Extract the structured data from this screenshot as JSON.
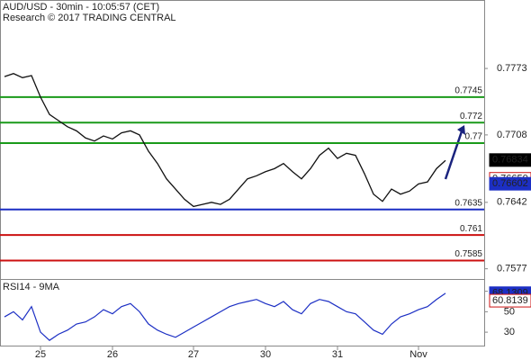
{
  "chart_data": {
    "type": "line",
    "title": "AUD/USD - 30min - 10:05:57 (CET)",
    "subtitle": "Research © 2017 TRADING CENTRAL",
    "categories": [
      null,
      null,
      null,
      null,
      "25",
      null,
      null,
      null,
      null,
      null,
      null,
      null,
      "26",
      null,
      null,
      null,
      null,
      null,
      null,
      null,
      null,
      "27",
      null,
      null,
      null,
      null,
      null,
      null,
      null,
      "30",
      null,
      null,
      null,
      null,
      null,
      null,
      null,
      "31",
      null,
      null,
      null,
      null,
      null,
      null,
      null,
      null,
      "Nov",
      null,
      null,
      null
    ],
    "series": [
      {
        "name": "AUD/USD",
        "color": "#111111",
        "values": [
          0.7765,
          0.7768,
          0.7764,
          0.7766,
          0.7745,
          0.7728,
          0.7722,
          0.7716,
          0.7712,
          0.7705,
          0.7702,
          0.7707,
          0.7704,
          0.771,
          0.7712,
          0.7708,
          0.7692,
          0.768,
          0.7665,
          0.7655,
          0.7645,
          0.7638,
          0.764,
          0.7642,
          0.764,
          0.7645,
          0.7655,
          0.7665,
          0.7668,
          0.7672,
          0.7675,
          0.768,
          0.7672,
          0.7665,
          0.7675,
          0.7688,
          0.7695,
          0.7685,
          0.769,
          0.7688,
          0.767,
          0.765,
          0.7643,
          0.7655,
          0.765,
          0.7653,
          0.766,
          0.7662,
          0.7675,
          0.7683
        ]
      }
    ],
    "ylim": [
      0.7567,
      0.784
    ],
    "yticks": [
      0.7773,
      0.7708,
      0.7642,
      0.7577
    ],
    "levels": [
      {
        "value": 0.7745,
        "color": "#1a9a1a"
      },
      {
        "value": 0.772,
        "color": "#1a9a1a"
      },
      {
        "value": 0.77,
        "color": "#1a9a1a"
      },
      {
        "value": 0.7635,
        "color": "#1c2fc4"
      },
      {
        "value": 0.761,
        "color": "#cc1111"
      },
      {
        "value": 0.7585,
        "color": "#cc1111"
      }
    ],
    "price_tags": {
      "values": [
        0.76834,
        0.7665,
        0.76602
      ],
      "value_labels": [
        "0.76834",
        "0.76650",
        "0.76602"
      ],
      "colors": [
        "#000000",
        "#cc1111",
        "#1c2fc4"
      ]
    },
    "rsi": {
      "title": "RSI14 - 9MA",
      "color": "#1c2fc4",
      "values": [
        45,
        50,
        42,
        55,
        30,
        22,
        28,
        32,
        38,
        40,
        45,
        52,
        48,
        55,
        58,
        50,
        38,
        32,
        28,
        25,
        30,
        35,
        40,
        45,
        50,
        55,
        58,
        60,
        62,
        58,
        55,
        60,
        52,
        48,
        58,
        62,
        60,
        55,
        50,
        48,
        40,
        32,
        28,
        38,
        45,
        48,
        52,
        55,
        62,
        68
      ],
      "ylim": [
        16,
        82
      ],
      "yticks": [
        70,
        50,
        30
      ],
      "tags": {
        "values": [
          68.1309,
          60.8139
        ],
        "colors": [
          "#1c2fc4",
          "#cc1111"
        ]
      }
    }
  }
}
